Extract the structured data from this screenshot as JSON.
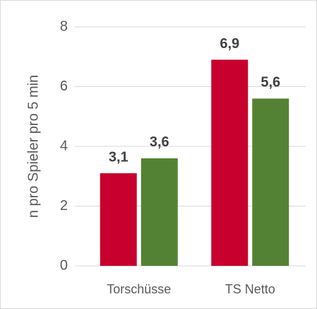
{
  "chart_data": {
    "type": "bar",
    "y_label": "n pro Spieler pro 5 min",
    "categories": [
      "Torschüsse",
      "TS Netto"
    ],
    "series": [
      {
        "color": "#c8002d",
        "values": [
          3.1,
          6.9
        ],
        "value_labels": [
          "3,1",
          "6,9"
        ]
      },
      {
        "color": "#548235",
        "values": [
          3.6,
          5.6
        ],
        "value_labels": [
          "3,6",
          "5,6"
        ]
      }
    ],
    "ylim": [
      0,
      8
    ],
    "yticks": [
      0,
      2,
      4,
      6,
      8
    ],
    "grid": true
  }
}
